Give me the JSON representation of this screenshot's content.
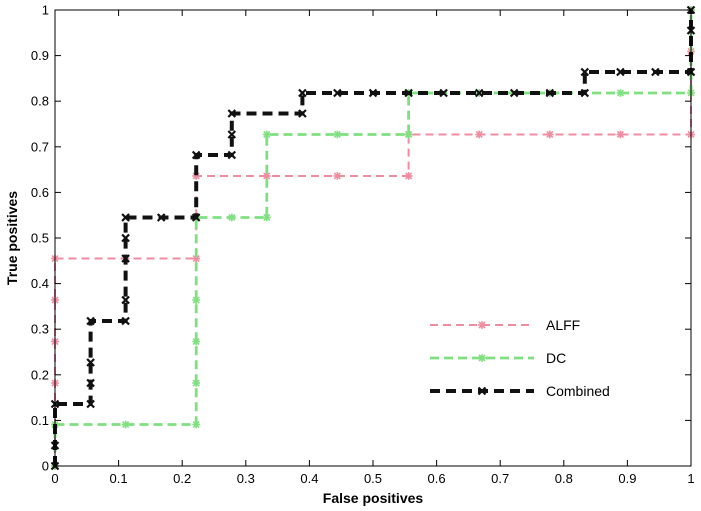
{
  "chart_data": {
    "type": "line",
    "xlabel": "False positives",
    "ylabel": "True positives",
    "xlim": [
      0,
      1
    ],
    "ylim": [
      0,
      1
    ],
    "xticks": [
      "0",
      "0.1",
      "0.2",
      "0.3",
      "0.4",
      "0.5",
      "0.6",
      "0.7",
      "0.8",
      "0.9",
      "1"
    ],
    "yticks": [
      "0",
      "0.1",
      "0.2",
      "0.3",
      "0.4",
      "0.5",
      "0.6",
      "0.7",
      "0.8",
      "0.9",
      "1"
    ],
    "grid": false,
    "legend_position": "bottom-right",
    "series": [
      {
        "name": "ALFF",
        "color": "#f08ca0",
        "marker": "asterisk",
        "x": [
          0,
          0,
          0,
          0,
          0,
          0,
          0.111,
          0.222,
          0.222,
          0.333,
          0.444,
          0.556,
          0.556,
          0.667,
          0.778,
          0.889,
          1,
          1,
          1
        ],
        "y": [
          0,
          0.091,
          0.182,
          0.273,
          0.364,
          0.455,
          0.455,
          0.455,
          0.636,
          0.636,
          0.636,
          0.636,
          0.727,
          0.727,
          0.727,
          0.727,
          0.727,
          0.909,
          1
        ]
      },
      {
        "name": "DC",
        "color": "#7fe07f",
        "marker": "asterisk",
        "x": [
          0,
          0,
          0.111,
          0.222,
          0.222,
          0.222,
          0.222,
          0.222,
          0.278,
          0.333,
          0.333,
          0.444,
          0.556,
          0.556,
          0.667,
          0.778,
          0.889,
          1,
          1
        ],
        "y": [
          0,
          0.091,
          0.091,
          0.091,
          0.182,
          0.273,
          0.364,
          0.545,
          0.545,
          0.545,
          0.727,
          0.727,
          0.727,
          0.818,
          0.818,
          0.818,
          0.818,
          0.818,
          1
        ]
      },
      {
        "name": "Combined",
        "color": "#111111",
        "marker": "x",
        "x": [
          0,
          0,
          0,
          0.056,
          0.056,
          0.056,
          0.056,
          0.111,
          0.111,
          0.111,
          0.111,
          0.111,
          0.167,
          0.222,
          0.222,
          0.278,
          0.278,
          0.278,
          0.389,
          0.389,
          0.444,
          0.5,
          0.556,
          0.611,
          0.667,
          0.722,
          0.778,
          0.833,
          0.833,
          0.889,
          0.944,
          1,
          1,
          1
        ],
        "y": [
          0,
          0.045,
          0.136,
          0.136,
          0.182,
          0.227,
          0.318,
          0.318,
          0.364,
          0.455,
          0.5,
          0.545,
          0.545,
          0.545,
          0.682,
          0.682,
          0.727,
          0.773,
          0.773,
          0.818,
          0.818,
          0.818,
          0.818,
          0.818,
          0.818,
          0.818,
          0.818,
          0.818,
          0.864,
          0.864,
          0.864,
          0.864,
          0.955,
          1
        ]
      }
    ]
  }
}
